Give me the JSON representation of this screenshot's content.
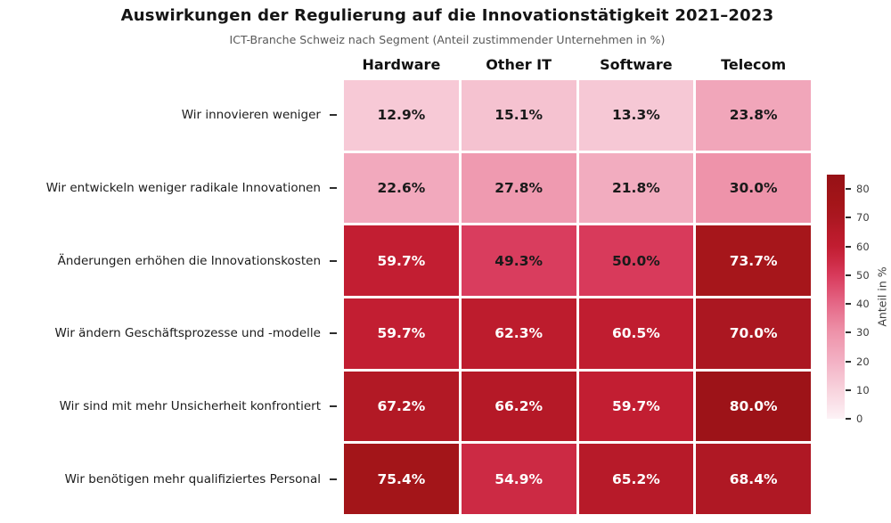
{
  "title": "Auswirkungen der Regulierung auf die Innovationstätigkeit 2021–2023",
  "subtitle": "ICT-Branche Schweiz nach Segment (Anteil zustimmender Unternehmen in %)",
  "chart_data": {
    "type": "heatmap",
    "columns": [
      "Hardware",
      "Other IT",
      "Software",
      "Telecom"
    ],
    "rows": [
      "Wir innovieren weniger",
      "Wir entwickeln weniger radikale Innovationen",
      "Änderungen erhöhen die Innovationskosten",
      "Wir ändern Geschäftsprozesse und -modelle",
      "Wir sind mit mehr Unsicherheit konfrontiert",
      "Wir benötigen mehr qualifiziertes Personal"
    ],
    "values": [
      [
        12.9,
        15.1,
        13.3,
        23.8
      ],
      [
        22.6,
        27.8,
        21.8,
        30.0
      ],
      [
        59.7,
        49.3,
        50.0,
        73.7
      ],
      [
        59.7,
        62.3,
        60.5,
        70.0
      ],
      [
        67.2,
        66.2,
        59.7,
        80.0
      ],
      [
        75.4,
        54.9,
        65.2,
        68.4
      ]
    ],
    "value_suffix": "%",
    "colorbar": {
      "label": "Anteil in %",
      "ticks": [
        0,
        10,
        20,
        30,
        40,
        50,
        60,
        70,
        80
      ],
      "vmin": 0,
      "vmax": 85
    },
    "colormap_stops": [
      [
        0,
        "#fdf2f6"
      ],
      [
        10,
        "#f8d3dd"
      ],
      [
        20,
        "#f3b1c4"
      ],
      [
        30,
        "#ee93aa"
      ],
      [
        40,
        "#e56887"
      ],
      [
        50,
        "#d83a5b"
      ],
      [
        55,
        "#cc2a44"
      ],
      [
        60,
        "#c11d31"
      ],
      [
        65,
        "#b81a29"
      ],
      [
        70,
        "#ab1721"
      ],
      [
        75,
        "#a41519"
      ],
      [
        85,
        "#961116"
      ]
    ],
    "text_color_threshold": 52,
    "dark_text_color": "#1a1a1a",
    "light_text_color": "#ffffff"
  }
}
